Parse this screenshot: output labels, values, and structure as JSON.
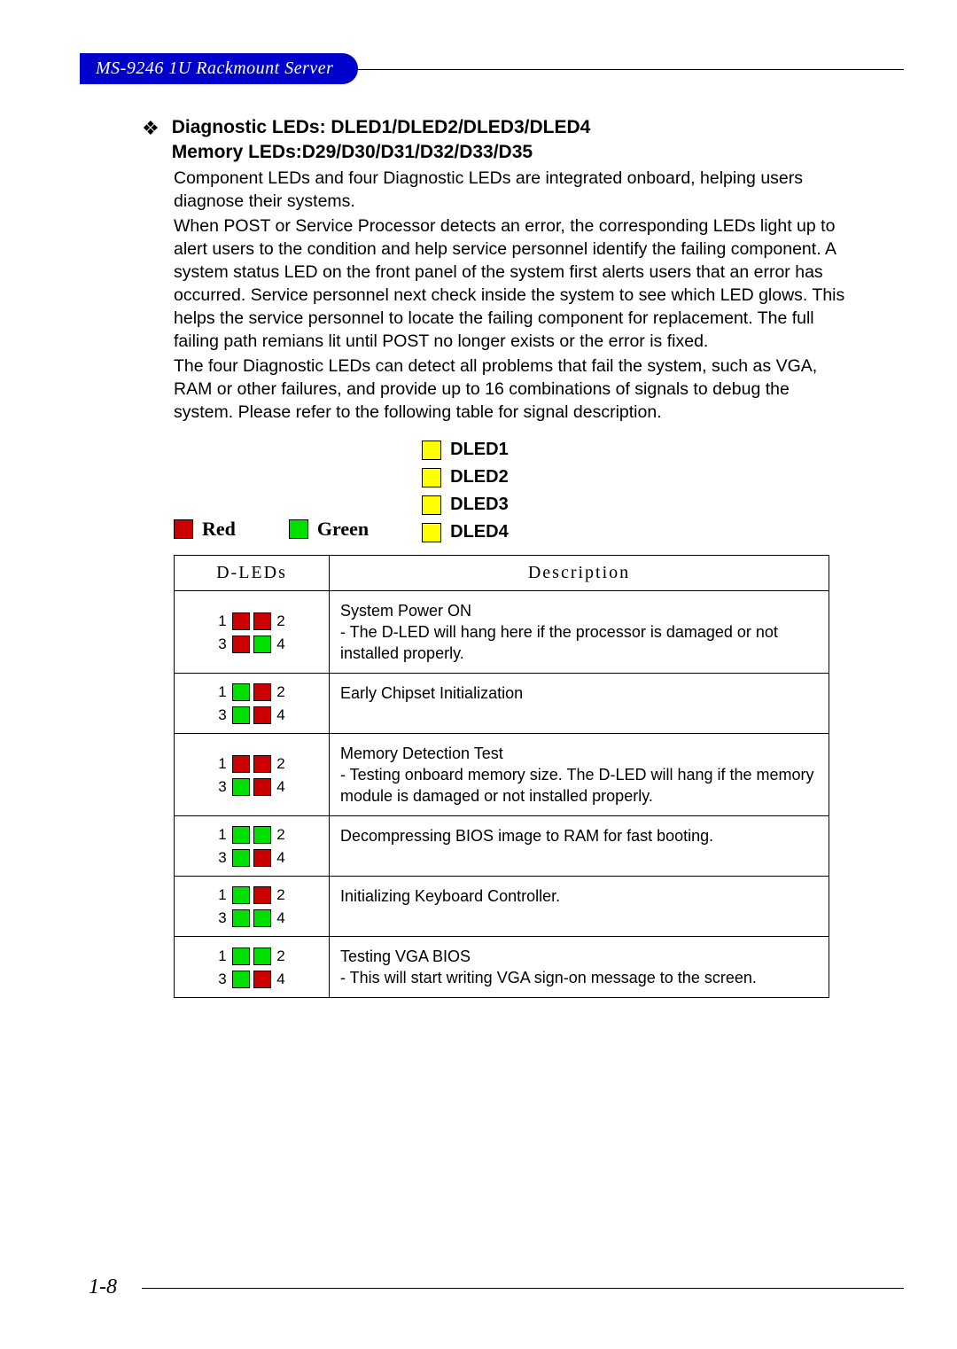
{
  "header": {
    "title": "MS-9246 1U Rackmount Server"
  },
  "section": {
    "heading_line1": "Diagnostic LEDs: DLED1/DLED2/DLED3/DLED4",
    "heading_line2": "Memory LEDs:D29/D30/D31/D32/D33/D35",
    "para1": "Component LEDs and four Diagnostic LEDs are integrated onboard, helping users diagnose their systems.",
    "para2": "When POST or Service Processor detects an error, the corresponding LEDs light up to alert users to the condition and help service personnel identify the failing component. A system status LED on the front panel of the system first alerts users that an error has occurred. Service personnel next check inside the system to see which LED glows. This helps the service personnel to locate the failing component for replacement. The full failing path remians lit until POST no longer exists or the error is fixed.",
    "para3": "The four Diagnostic LEDs can detect all problems that fail the system, such as VGA, RAM or other failures, and provide up to 16 combinations of signals to debug the system. Please refer to the following table for signal description."
  },
  "colors": {
    "red": "#cc0000",
    "green": "#00e000",
    "yellow": "#ffff00"
  },
  "legend": {
    "red_label": "Red",
    "green_label": "Green",
    "dled": [
      "DLED1",
      "DLED2",
      "DLED3",
      "DLED4"
    ]
  },
  "table": {
    "col1": "D-LEDs",
    "col2": "Description",
    "rows": [
      {
        "leds": [
          "red",
          "red",
          "red",
          "green"
        ],
        "desc": "System Power ON\n- The D-LED will hang here if the processor is damaged or not installed properly."
      },
      {
        "leds": [
          "green",
          "red",
          "green",
          "red"
        ],
        "desc": "Early Chipset Initialization"
      },
      {
        "leds": [
          "red",
          "red",
          "green",
          "red"
        ],
        "desc": "Memory Detection Test\n- Testing onboard memory size. The D-LED will hang if the memory module is damaged or not installed properly."
      },
      {
        "leds": [
          "green",
          "green",
          "green",
          "red"
        ],
        "desc": "Decompressing BIOS image to RAM for fast booting."
      },
      {
        "leds": [
          "green",
          "red",
          "green",
          "green"
        ],
        "desc": "Initializing Keyboard Controller."
      },
      {
        "leds": [
          "green",
          "green",
          "green",
          "red"
        ],
        "desc": "Testing VGA BIOS\n- This will start writing VGA sign-on message to the screen."
      }
    ]
  },
  "page_number": "1-8"
}
